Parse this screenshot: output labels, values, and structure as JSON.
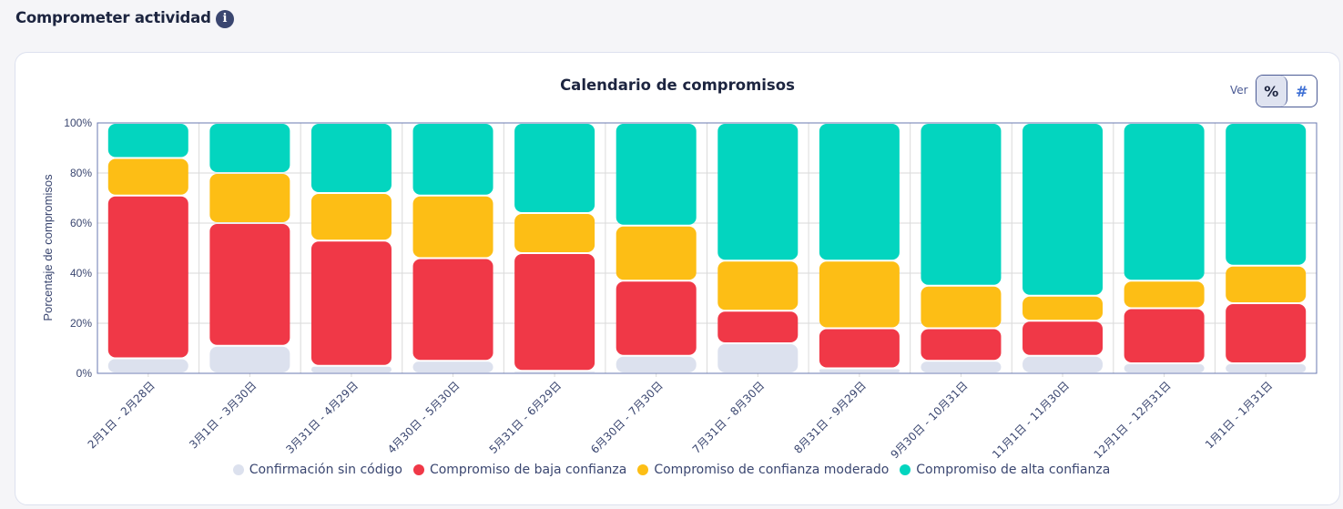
{
  "header": {
    "title": "Comprometer actividad",
    "info_icon": "info-icon"
  },
  "card": {
    "view_label": "Ver",
    "toggle": {
      "percent_label": "%",
      "count_label": "#",
      "selected": "percent"
    }
  },
  "colors": {
    "no_code": "#dce1ee",
    "low": "#f03847",
    "moderate": "#fdbe15",
    "high": "#03d5bf",
    "axis": "#6a78b0",
    "grid": "#dadada",
    "text": "#3a4670"
  },
  "chart_data": {
    "type": "bar",
    "stacked": true,
    "title": "Calendario de compromisos",
    "xlabel": "",
    "ylabel": "Porcentaje de compromisos",
    "ylim": [
      0,
      100
    ],
    "yticks": [
      "0%",
      "20%",
      "40%",
      "60%",
      "80%",
      "100%"
    ],
    "ytick_values": [
      0,
      20,
      40,
      60,
      80,
      100
    ],
    "grid": true,
    "legend_position": "bottom",
    "categories": [
      "2月1日 - 2月28日",
      "3月1日 - 3月30日",
      "3月31日 - 4月29日",
      "4月30日 - 5月30日",
      "5月31日 - 6月29日",
      "6月30日 - 7月30日",
      "7月31日 - 8月30日",
      "8月31日 - 9月29日",
      "9月30日 - 10月31日",
      "11月1日 - 11月30日",
      "12月1日 - 12月31日",
      "1月1日 - 1月31日"
    ],
    "series": [
      {
        "name": "Confirmación sin código",
        "color": "#dce1ee",
        "values": [
          6,
          11,
          3,
          5,
          1,
          7,
          12,
          2,
          5,
          7,
          4,
          4
        ]
      },
      {
        "name": "Compromiso de baja confianza",
        "color": "#f03847",
        "values": [
          65,
          49,
          50,
          41,
          47,
          30,
          13,
          16,
          13,
          14,
          22,
          24
        ]
      },
      {
        "name": "Compromiso de confianza moderado",
        "color": "#fdbe15",
        "values": [
          15,
          20,
          19,
          25,
          16,
          22,
          20,
          27,
          17,
          10,
          11,
          15
        ]
      },
      {
        "name": "Compromiso de alta confianza",
        "color": "#03d5bf",
        "values": [
          14,
          20,
          28,
          29,
          36,
          41,
          55,
          55,
          65,
          69,
          63,
          57
        ]
      }
    ]
  }
}
